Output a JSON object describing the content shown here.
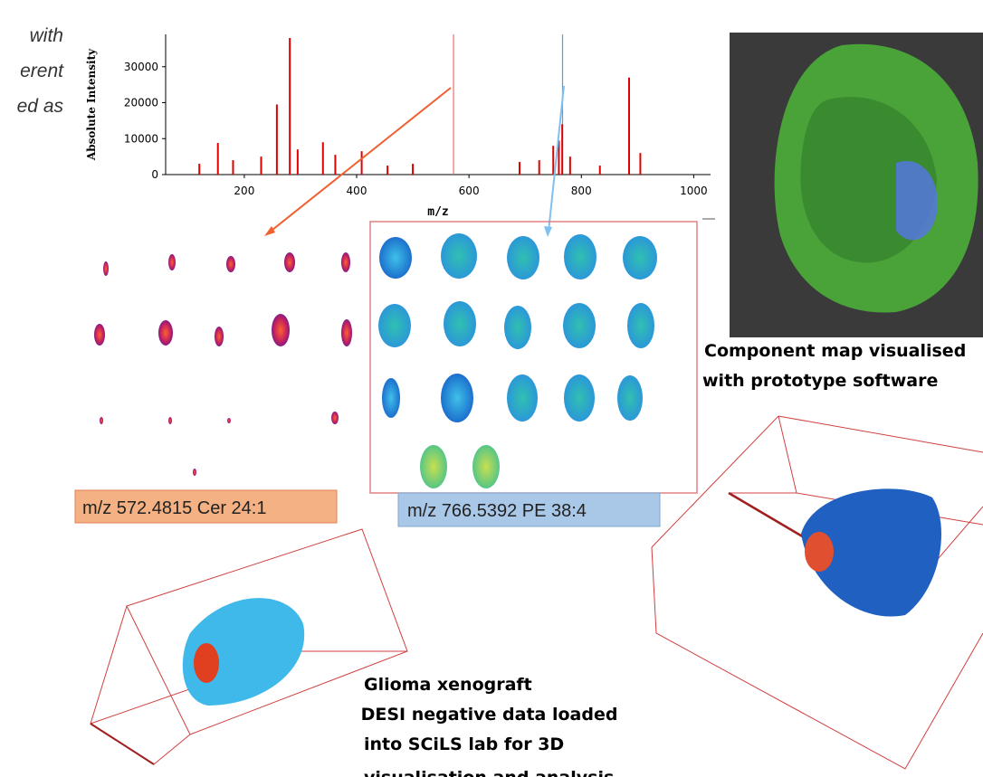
{
  "intro_fragments": [
    "with",
    "erent",
    "ed as"
  ],
  "spectrum": {
    "type": "stem",
    "y_label": "Absolute Intensity",
    "x_label": "m/z",
    "x": [
      120,
      153,
      180,
      230,
      258,
      281,
      295,
      340,
      362,
      409,
      455,
      500,
      690,
      725,
      750,
      760,
      766,
      780,
      833,
      885,
      905
    ],
    "values": [
      3000,
      8800,
      4000,
      5000,
      19500,
      38000,
      7000,
      9000,
      5500,
      6500,
      2500,
      3000,
      3500,
      4000,
      8000,
      9500,
      14000,
      5000,
      2500,
      27000,
      6000
    ],
    "color": "#e00000",
    "xlim": [
      60,
      1030
    ],
    "xticks": [
      200,
      400,
      600,
      800,
      1000
    ],
    "ylim": [
      0,
      39000
    ],
    "yticks": [
      0,
      10000,
      20000,
      30000
    ],
    "markers": [
      {
        "mz": 572.4815,
        "color": "#e87070"
      },
      {
        "mz": 766.5392,
        "color": "#4aa3e8"
      }
    ]
  },
  "labels": {
    "cer": "m/z 572.4815 Cer 24:1",
    "pe": "m/z 766.5392 PE 38:4"
  },
  "component_caption": [
    "Component map visualised",
    "with prototype software"
  ],
  "glioma_caption": [
    "Glioma xenograft",
    " DESI negative data loaded",
    "into SCiLS lab for 3D",
    "visualisation and analysis"
  ]
}
